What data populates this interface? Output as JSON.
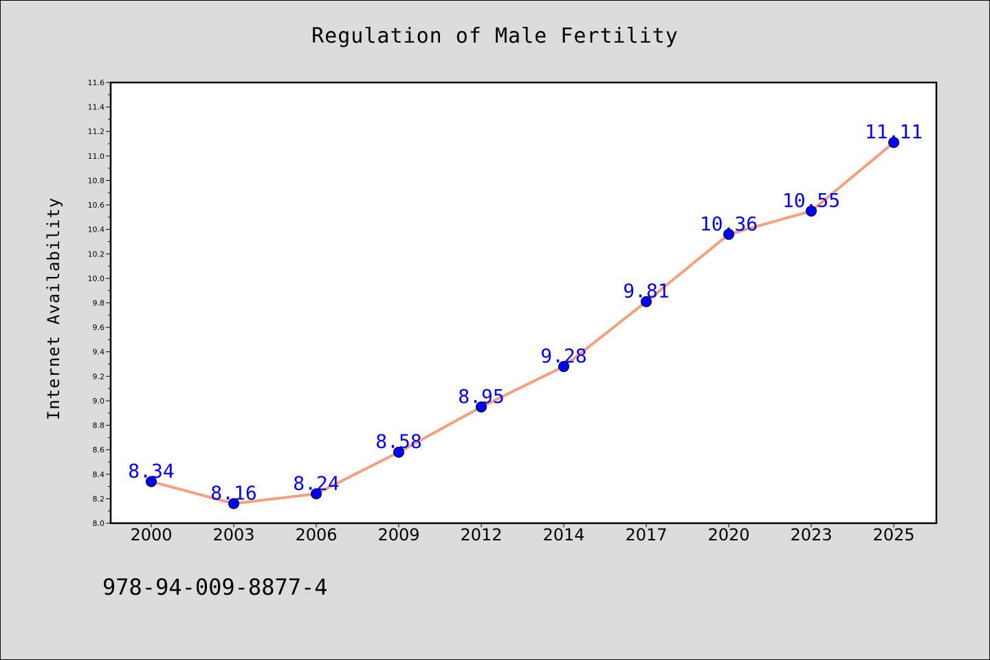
{
  "chart_data": {
    "type": "line",
    "title": "Regulation of Male Fertility",
    "xlabel": "",
    "ylabel": "Internet Availability",
    "categories": [
      "2000",
      "2003",
      "2006",
      "2009",
      "2012",
      "2014",
      "2017",
      "2020",
      "2023",
      "2025"
    ],
    "series": [
      {
        "values": [
          8.34,
          8.16,
          8.24,
          8.58,
          8.95,
          9.28,
          9.81,
          10.36,
          10.55,
          11.11
        ]
      }
    ],
    "data_labels": [
      "8.34",
      "8.16",
      "8.24",
      "8.58",
      "8.95",
      "9.28",
      "9.81",
      "10.36",
      "10.55",
      "11.11"
    ],
    "ylim": [
      8.0,
      11.6
    ],
    "y_ticks": [
      "8.0",
      "8.2",
      "8.4",
      "8.6",
      "8.8",
      "9.0",
      "9.2",
      "9.4",
      "9.6",
      "9.8",
      "10.0",
      "10.2",
      "10.4",
      "10.6",
      "10.8",
      "11.0",
      "11.2",
      "11.4",
      "11.6"
    ],
    "grid": false,
    "legend": "none",
    "colors": {
      "line": "#f4a07a",
      "marker": "#0000ff",
      "data_label": "#0000ff",
      "plot_background": "#ffffff",
      "figure_background": "#dcdcdc"
    }
  },
  "footer": {
    "code": "978-94-009-8877-4"
  }
}
